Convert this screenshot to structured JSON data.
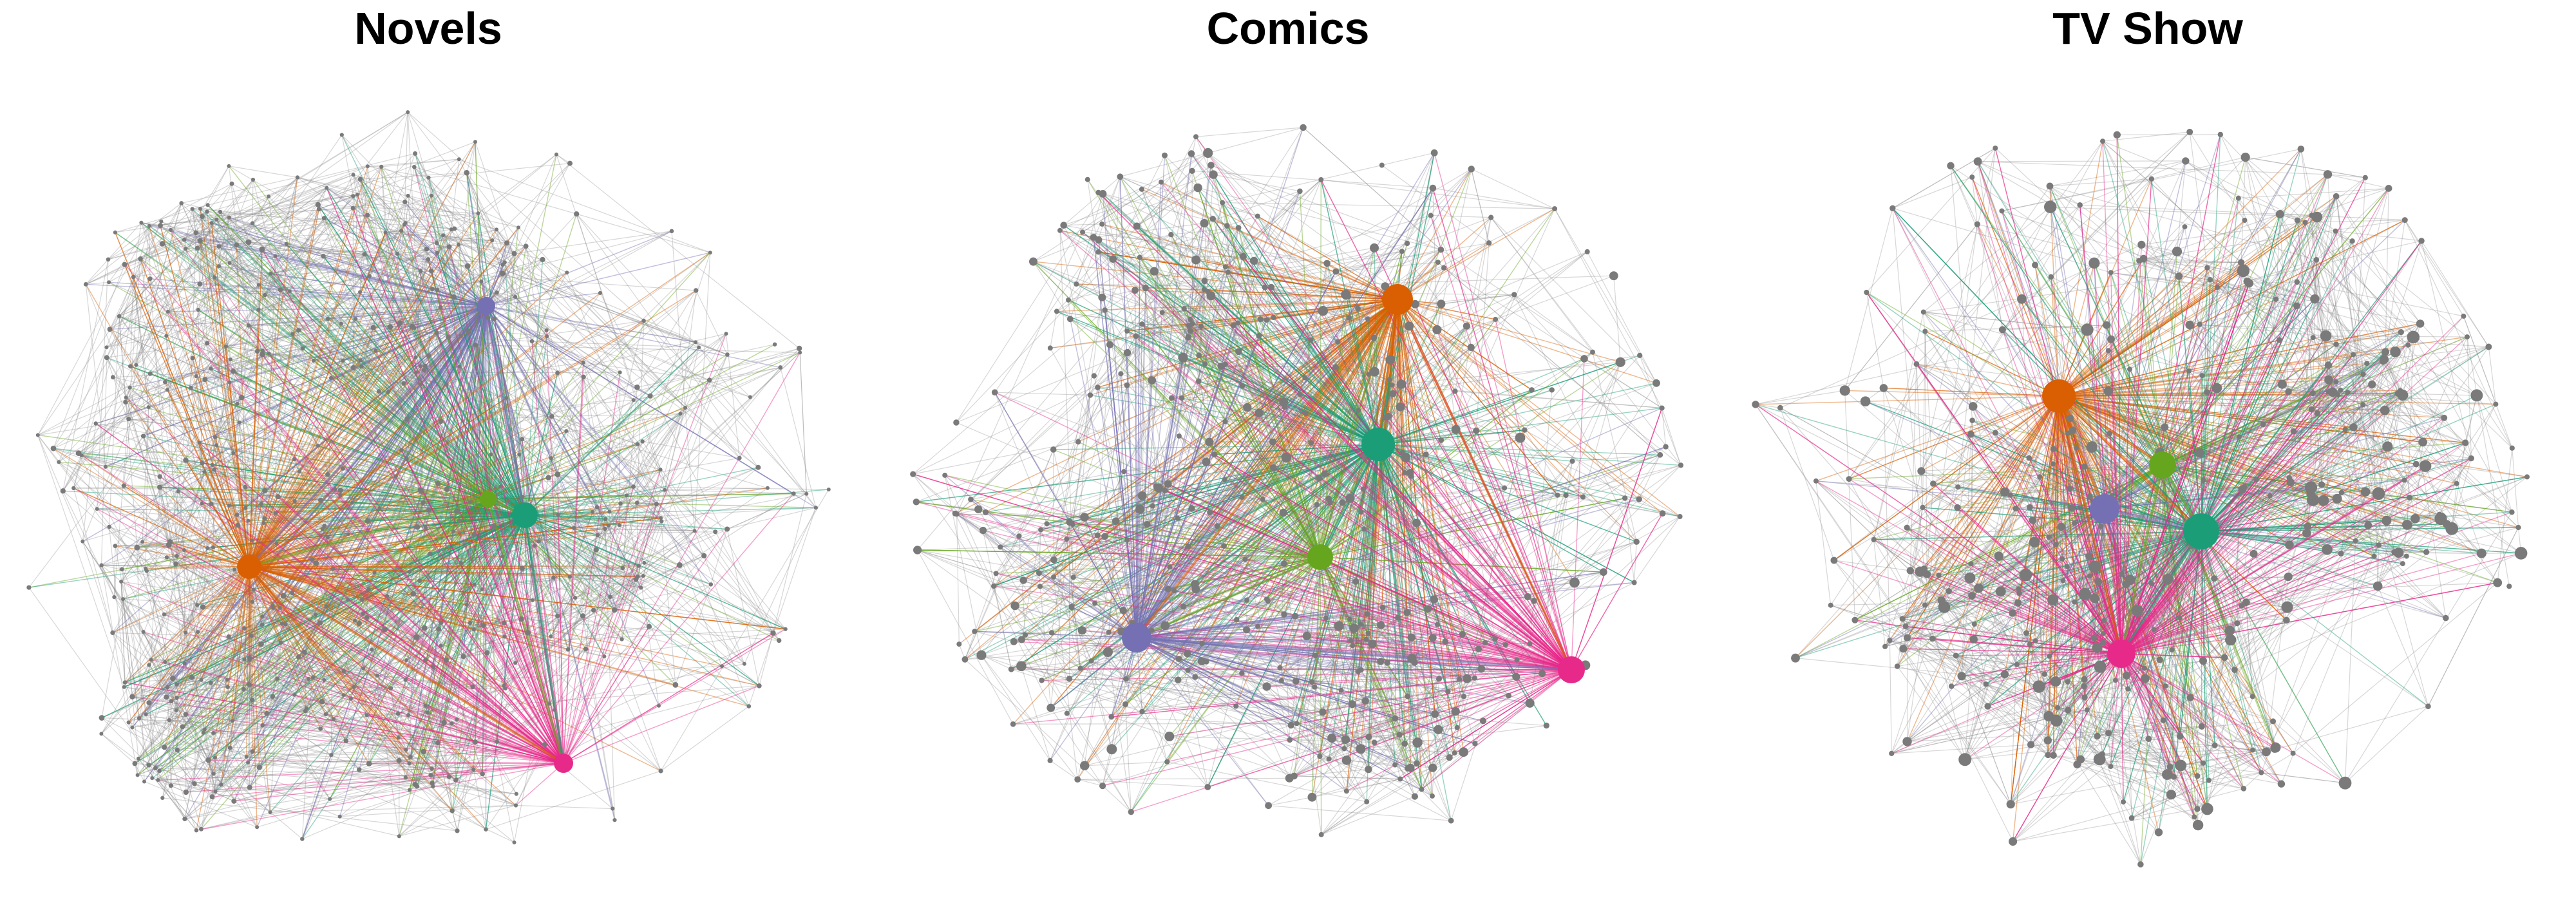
{
  "panels": [
    {
      "title": "Novels",
      "hubs": [
        {
          "color": "#7570b3",
          "name": "purple-hub"
        },
        {
          "color": "#66a61e",
          "name": "green-hub"
        },
        {
          "color": "#1b9e77",
          "name": "teal-hub"
        },
        {
          "color": "#d95f02",
          "name": "orange-hub"
        },
        {
          "color": "#e7298a",
          "name": "pink-hub"
        }
      ]
    },
    {
      "title": "Comics",
      "hubs": [
        {
          "color": "#d95f02",
          "name": "orange-hub"
        },
        {
          "color": "#1b9e77",
          "name": "teal-hub"
        },
        {
          "color": "#66a61e",
          "name": "green-hub"
        },
        {
          "color": "#7570b3",
          "name": "purple-hub"
        },
        {
          "color": "#e7298a",
          "name": "pink-hub"
        }
      ]
    },
    {
      "title": "TV Show",
      "hubs": [
        {
          "color": "#d95f02",
          "name": "orange-hub"
        },
        {
          "color": "#66a61e",
          "name": "green-hub"
        },
        {
          "color": "#7570b3",
          "name": "purple-hub"
        },
        {
          "color": "#1b9e77",
          "name": "teal-hub"
        },
        {
          "color": "#e7298a",
          "name": "pink-hub"
        }
      ]
    }
  ],
  "colors": {
    "node": "#7a7a7a",
    "edge": "#8c8c8c"
  }
}
